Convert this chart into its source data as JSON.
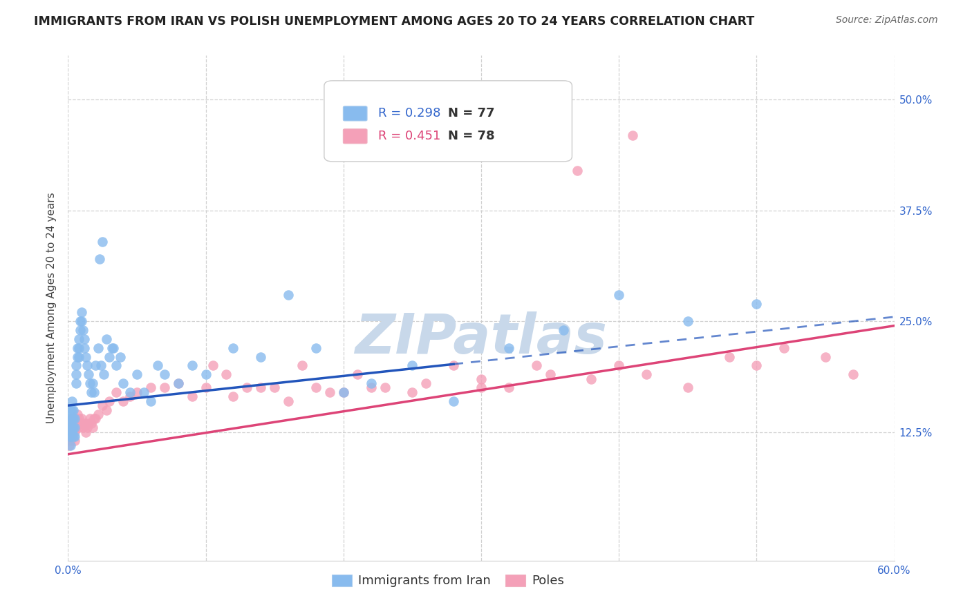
{
  "title": "IMMIGRANTS FROM IRAN VS POLISH UNEMPLOYMENT AMONG AGES 20 TO 24 YEARS CORRELATION CHART",
  "source": "Source: ZipAtlas.com",
  "ylabel": "Unemployment Among Ages 20 to 24 years",
  "xlim": [
    0.0,
    0.6
  ],
  "ylim": [
    -0.02,
    0.55
  ],
  "xticks": [
    0.0,
    0.1,
    0.2,
    0.3,
    0.4,
    0.5,
    0.6
  ],
  "yticks": [
    0.125,
    0.25,
    0.375,
    0.5
  ],
  "ytick_labels": [
    "12.5%",
    "25.0%",
    "37.5%",
    "50.0%"
  ],
  "xtick_labels": [
    "0.0%",
    "",
    "",
    "",
    "",
    "",
    "60.0%"
  ],
  "background_color": "#ffffff",
  "grid_color": "#cccccc",
  "watermark_text": "ZIPatlas",
  "watermark_color": "#c8d8ea",
  "legend_R1": "R = 0.298",
  "legend_N1": "N = 77",
  "legend_R2": "R = 0.451",
  "legend_N2": "N = 78",
  "series1_color": "#88bbee",
  "series2_color": "#f4a0b8",
  "series1_line_color": "#2255bb",
  "series2_line_color": "#dd4477",
  "series1_label": "Immigrants from Iran",
  "series2_label": "Poles",
  "iran_x": [
    0.001,
    0.001,
    0.001,
    0.002,
    0.002,
    0.002,
    0.002,
    0.002,
    0.003,
    0.003,
    0.003,
    0.003,
    0.003,
    0.004,
    0.004,
    0.004,
    0.004,
    0.005,
    0.005,
    0.005,
    0.006,
    0.006,
    0.006,
    0.007,
    0.007,
    0.008,
    0.008,
    0.008,
    0.009,
    0.009,
    0.01,
    0.01,
    0.011,
    0.012,
    0.012,
    0.013,
    0.014,
    0.015,
    0.016,
    0.017,
    0.018,
    0.019,
    0.02,
    0.022,
    0.024,
    0.026,
    0.028,
    0.03,
    0.032,
    0.035,
    0.04,
    0.045,
    0.05,
    0.055,
    0.06,
    0.065,
    0.07,
    0.08,
    0.09,
    0.1,
    0.12,
    0.14,
    0.16,
    0.18,
    0.2,
    0.22,
    0.25,
    0.28,
    0.32,
    0.36,
    0.4,
    0.45,
    0.5,
    0.023,
    0.025,
    0.033,
    0.038
  ],
  "iran_y": [
    0.14,
    0.13,
    0.12,
    0.15,
    0.14,
    0.13,
    0.12,
    0.11,
    0.15,
    0.14,
    0.13,
    0.125,
    0.16,
    0.15,
    0.14,
    0.13,
    0.12,
    0.14,
    0.13,
    0.12,
    0.2,
    0.19,
    0.18,
    0.22,
    0.21,
    0.23,
    0.22,
    0.21,
    0.25,
    0.24,
    0.26,
    0.25,
    0.24,
    0.23,
    0.22,
    0.21,
    0.2,
    0.19,
    0.18,
    0.17,
    0.18,
    0.17,
    0.2,
    0.22,
    0.2,
    0.19,
    0.23,
    0.21,
    0.22,
    0.2,
    0.18,
    0.17,
    0.19,
    0.17,
    0.16,
    0.2,
    0.19,
    0.18,
    0.2,
    0.19,
    0.22,
    0.21,
    0.28,
    0.22,
    0.17,
    0.18,
    0.2,
    0.16,
    0.22,
    0.24,
    0.28,
    0.25,
    0.27,
    0.32,
    0.34,
    0.22,
    0.21
  ],
  "poles_x": [
    0.001,
    0.001,
    0.002,
    0.002,
    0.002,
    0.003,
    0.003,
    0.003,
    0.004,
    0.004,
    0.005,
    0.005,
    0.005,
    0.006,
    0.006,
    0.007,
    0.007,
    0.008,
    0.008,
    0.009,
    0.01,
    0.01,
    0.011,
    0.012,
    0.013,
    0.014,
    0.015,
    0.016,
    0.017,
    0.018,
    0.019,
    0.02,
    0.022,
    0.025,
    0.028,
    0.03,
    0.035,
    0.04,
    0.045,
    0.05,
    0.06,
    0.07,
    0.08,
    0.09,
    0.1,
    0.12,
    0.14,
    0.16,
    0.18,
    0.2,
    0.22,
    0.25,
    0.28,
    0.3,
    0.32,
    0.35,
    0.38,
    0.4,
    0.42,
    0.45,
    0.48,
    0.5,
    0.52,
    0.55,
    0.57,
    0.105,
    0.115,
    0.13,
    0.15,
    0.17,
    0.19,
    0.21,
    0.23,
    0.26,
    0.3,
    0.34,
    0.37,
    0.41
  ],
  "poles_y": [
    0.12,
    0.11,
    0.135,
    0.125,
    0.115,
    0.14,
    0.13,
    0.12,
    0.135,
    0.125,
    0.13,
    0.125,
    0.115,
    0.14,
    0.13,
    0.145,
    0.135,
    0.14,
    0.13,
    0.135,
    0.14,
    0.135,
    0.13,
    0.135,
    0.125,
    0.13,
    0.135,
    0.14,
    0.135,
    0.13,
    0.14,
    0.14,
    0.145,
    0.155,
    0.15,
    0.16,
    0.17,
    0.16,
    0.165,
    0.17,
    0.175,
    0.175,
    0.18,
    0.165,
    0.175,
    0.165,
    0.175,
    0.16,
    0.175,
    0.17,
    0.175,
    0.17,
    0.2,
    0.185,
    0.175,
    0.19,
    0.185,
    0.2,
    0.19,
    0.175,
    0.21,
    0.2,
    0.22,
    0.21,
    0.19,
    0.2,
    0.19,
    0.175,
    0.175,
    0.2,
    0.17,
    0.19,
    0.175,
    0.18,
    0.175,
    0.2,
    0.42,
    0.46
  ],
  "iran_line_y_start": 0.155,
  "iran_line_y_end": 0.255,
  "iran_line_solid_end": 0.28,
  "poles_line_y_start": 0.1,
  "poles_line_y_end": 0.245
}
